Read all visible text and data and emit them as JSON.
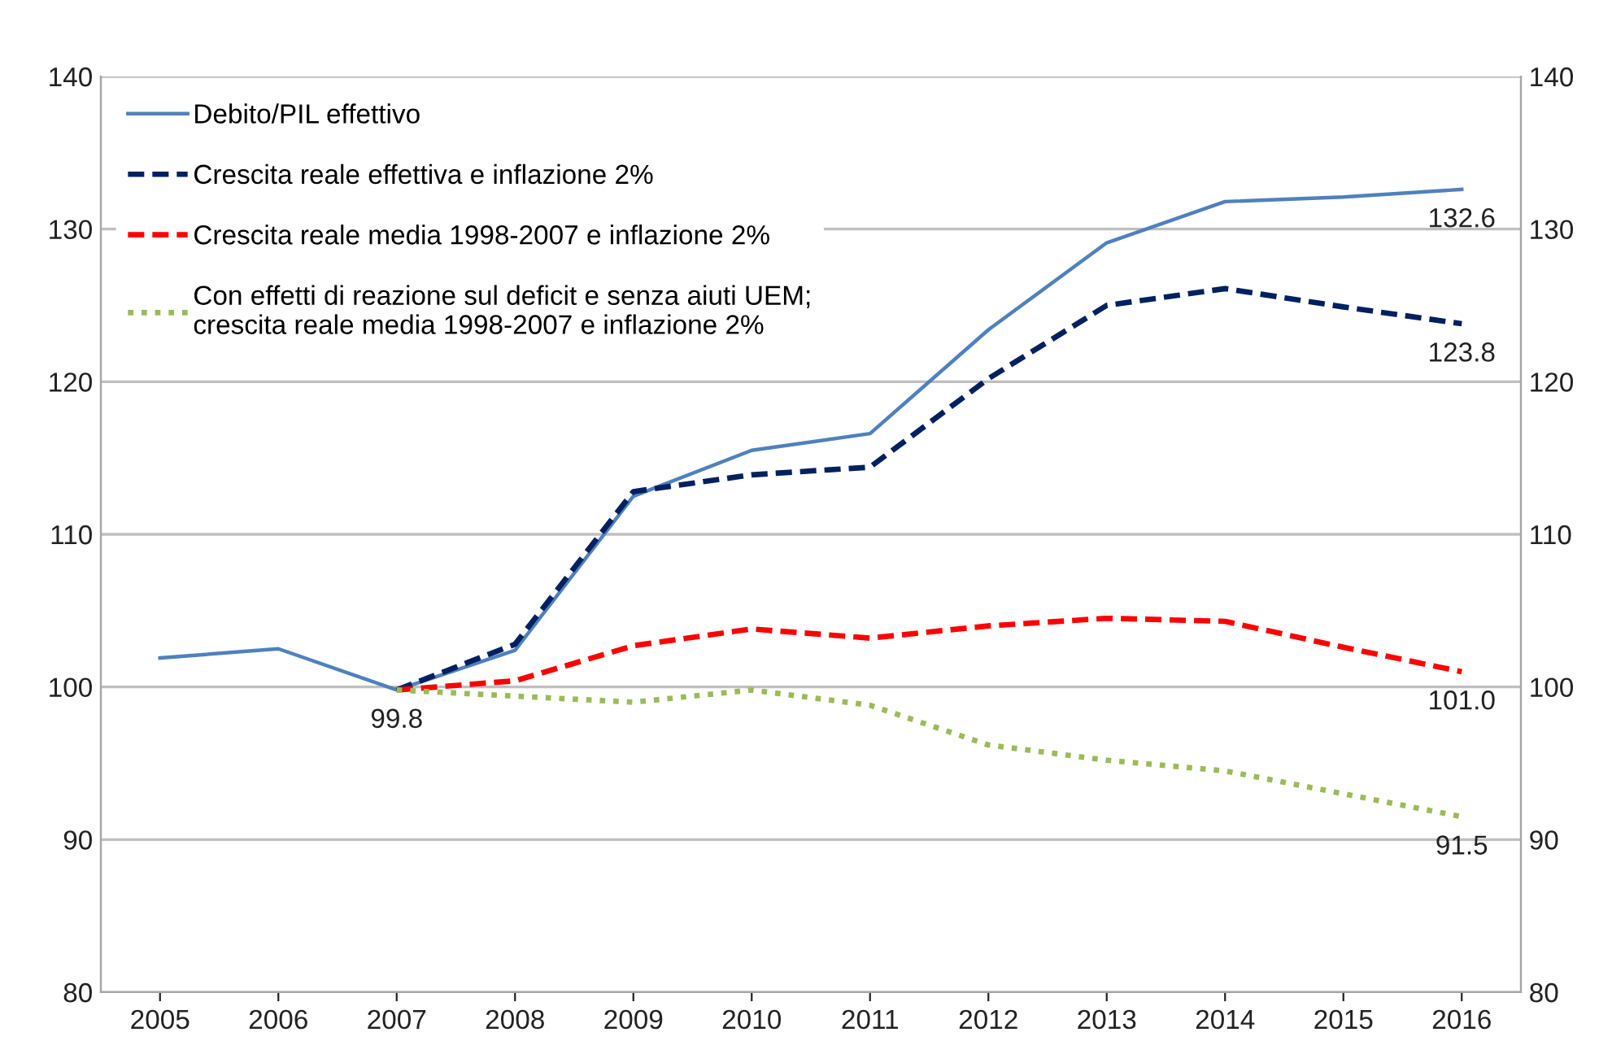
{
  "chart_data": {
    "type": "line",
    "categories": [
      "2005",
      "2006",
      "2007",
      "2008",
      "2009",
      "2010",
      "2011",
      "2012",
      "2013",
      "2014",
      "2015",
      "2016"
    ],
    "series": [
      {
        "name": "Debito/PIL effettivo",
        "color": "#4f81bd",
        "line_style": "solid",
        "values": [
          101.9,
          102.5,
          99.8,
          102.4,
          112.5,
          115.5,
          116.6,
          123.4,
          129.1,
          131.8,
          132.1,
          132.6
        ],
        "value_labels": [
          null,
          null,
          "99.8",
          null,
          null,
          null,
          null,
          null,
          null,
          null,
          null,
          "132.6"
        ]
      },
      {
        "name": "Crescita reale effettiva e inflazione 2%",
        "color": "#002060",
        "line_style": "dashed",
        "values": [
          null,
          null,
          99.8,
          102.8,
          112.8,
          113.9,
          114.4,
          120.2,
          125.0,
          126.1,
          124.9,
          123.8
        ],
        "value_labels": [
          null,
          null,
          null,
          null,
          null,
          null,
          null,
          null,
          null,
          null,
          null,
          "123.8"
        ]
      },
      {
        "name": "Crescita reale media 1998-2007 e inflazione 2%",
        "color": "#ff0000",
        "line_style": "dashed",
        "values": [
          null,
          null,
          99.8,
          100.4,
          102.7,
          103.8,
          103.2,
          104.0,
          104.5,
          104.3,
          102.6,
          101.0
        ],
        "value_labels": [
          null,
          null,
          null,
          null,
          null,
          null,
          null,
          null,
          null,
          null,
          null,
          "101.0"
        ]
      },
      {
        "name": "Con effetti di reazione sul deficit e senza aiuti UEM;\ncrescita reale media 1998-2007 e inflazione 2%",
        "color": "#9bbb59",
        "line_style": "dotted",
        "values": [
          null,
          null,
          99.8,
          99.4,
          99.0,
          99.8,
          98.8,
          96.2,
          95.2,
          94.5,
          93.0,
          91.5
        ],
        "value_labels": [
          null,
          null,
          null,
          null,
          null,
          null,
          null,
          null,
          null,
          null,
          null,
          "91.5"
        ]
      }
    ],
    "ylim": [
      80,
      140
    ],
    "yticks": [
      80,
      90,
      100,
      110,
      120,
      130,
      140
    ],
    "y2lim": [
      80,
      140
    ],
    "y2ticks": [
      80,
      90,
      100,
      110,
      120,
      130,
      140
    ],
    "grid": "y",
    "legend": "top left",
    "marker": "none"
  }
}
